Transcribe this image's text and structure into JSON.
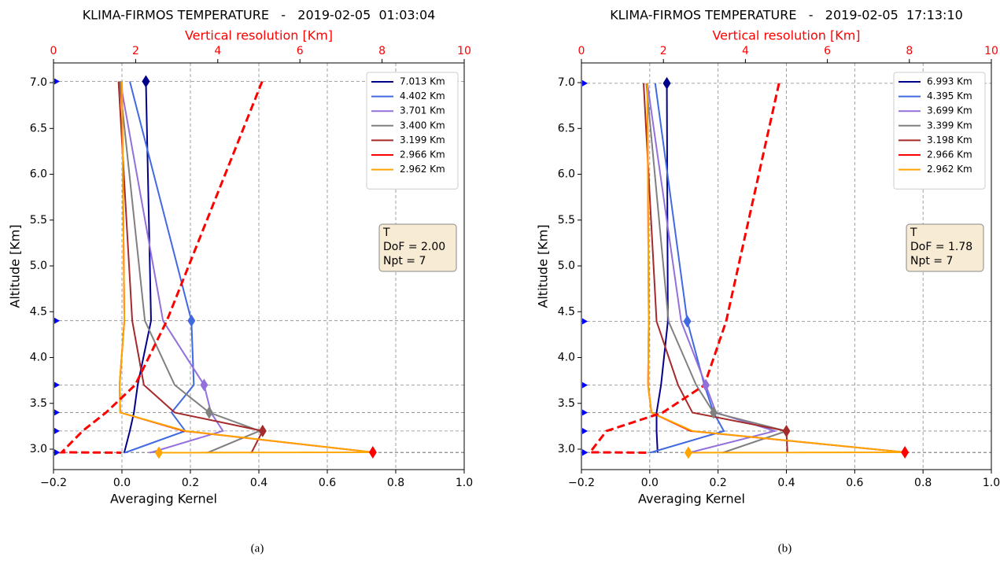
{
  "chart_data": [
    {
      "type": "line",
      "title": "KLIMA-FIRMOS TEMPERATURE   -   2019-02-05  01:03:04",
      "x_label": "Averaging Kernel",
      "y_label": "Altitude [Km]",
      "x2_label": "Vertical resolution [Km]",
      "caption": "(a)",
      "xlim": [
        -0.2,
        1.0
      ],
      "xticks": [
        {
          "value": -0.2,
          "label": "−0.2"
        },
        {
          "value": 0.0,
          "label": "0.0"
        },
        {
          "value": 0.2,
          "label": "0.2"
        },
        {
          "value": 0.4,
          "label": "0.4"
        },
        {
          "value": 0.6,
          "label": "0.6"
        },
        {
          "value": 0.8,
          "label": "0.8"
        },
        {
          "value": 1.0,
          "label": "1.0"
        }
      ],
      "x2lim": [
        0,
        10
      ],
      "x2ticks": [
        0,
        2,
        4,
        6,
        8,
        10
      ],
      "ylim": [
        2.777,
        7.215
      ],
      "yticks": [
        {
          "value": 3.0,
          "label": "3.0"
        },
        {
          "value": 3.5,
          "label": "3.5"
        },
        {
          "value": 4.0,
          "label": "4.0"
        },
        {
          "value": 4.5,
          "label": "4.5"
        },
        {
          "value": 5.0,
          "label": "5.0"
        },
        {
          "value": 5.5,
          "label": "5.5"
        },
        {
          "value": 6.0,
          "label": "6.0"
        },
        {
          "value": 6.5,
          "label": "6.5"
        },
        {
          "value": 7.0,
          "label": "7.0"
        }
      ],
      "y": [
        7.013,
        4.402,
        3.701,
        3.4,
        3.199,
        2.966,
        2.962
      ],
      "series": [
        {
          "name": "7.013 Km",
          "color": "#00008b",
          "values": [
            0.07,
            0.085,
            0.046,
            0.035,
            0.023,
            0.007,
            0.005
          ]
        },
        {
          "name": "4.402 Km",
          "color": "#4169e1",
          "values": [
            0.023,
            0.203,
            0.21,
            0.145,
            0.185,
            0.012,
            0.007
          ]
        },
        {
          "name": "3.701 Km",
          "color": "#9370db",
          "values": [
            -0.005,
            0.12,
            0.24,
            0.26,
            0.295,
            0.087,
            0.08
          ]
        },
        {
          "name": "3.400 Km",
          "color": "#808080",
          "values": [
            -0.007,
            0.067,
            0.154,
            0.255,
            0.402,
            0.253,
            0.246
          ]
        },
        {
          "name": "3.199 Km",
          "color": "#a52a2a",
          "values": [
            -0.01,
            0.03,
            0.064,
            0.154,
            0.411,
            0.379,
            0.375
          ]
        },
        {
          "name": "2.966 Km",
          "color": "#ff0000",
          "values": [
            0.0,
            0.007,
            -0.007,
            -0.005,
            0.18,
            0.733,
            0.73
          ]
        },
        {
          "name": "2.962 Km",
          "color": "#ffa500",
          "values": [
            0.0,
            0.007,
            -0.007,
            -0.005,
            0.185,
            0.733,
            0.108
          ]
        }
      ],
      "resolution": {
        "color": "#ff0000",
        "values": [
          5.08,
          2.76,
          1.99,
          1.28,
          0.71,
          0.2,
          1.65
        ]
      },
      "annotation": [
        "T",
        "DoF = 2.00",
        "Npt = 7"
      ]
    },
    {
      "type": "line",
      "title": "KLIMA-FIRMOS TEMPERATURE   -   2019-02-05  17:13:10",
      "x_label": "Averaging Kernel",
      "y_label": "Altitude [Km]",
      "x2_label": "Vertical resolution [Km]",
      "caption": "(b)",
      "xlim": [
        -0.2,
        1.0
      ],
      "xticks": [
        {
          "value": -0.2,
          "label": "−0.2"
        },
        {
          "value": 0.0,
          "label": "0.0"
        },
        {
          "value": 0.2,
          "label": "0.2"
        },
        {
          "value": 0.4,
          "label": "0.4"
        },
        {
          "value": 0.6,
          "label": "0.6"
        },
        {
          "value": 0.8,
          "label": "0.8"
        },
        {
          "value": 1.0,
          "label": "1.0"
        }
      ],
      "x2lim": [
        0,
        10
      ],
      "x2ticks": [
        0,
        2,
        4,
        6,
        8,
        10
      ],
      "ylim": [
        2.777,
        7.215
      ],
      "yticks": [
        {
          "value": 3.0,
          "label": "3.0"
        },
        {
          "value": 3.5,
          "label": "3.5"
        },
        {
          "value": 4.0,
          "label": "4.0"
        },
        {
          "value": 4.5,
          "label": "4.5"
        },
        {
          "value": 5.0,
          "label": "5.0"
        },
        {
          "value": 5.5,
          "label": "5.5"
        },
        {
          "value": 6.0,
          "label": "6.0"
        },
        {
          "value": 6.5,
          "label": "6.5"
        },
        {
          "value": 7.0,
          "label": "7.0"
        }
      ],
      "y": [
        6.993,
        4.395,
        3.699,
        3.399,
        3.198,
        2.966,
        2.962
      ],
      "series": [
        {
          "name": "6.993 Km",
          "color": "#00008b",
          "values": [
            0.05,
            0.053,
            0.033,
            0.02,
            0.02,
            0.023,
            0.023
          ]
        },
        {
          "name": "4.395 Km",
          "color": "#4169e1",
          "values": [
            0.016,
            0.11,
            0.16,
            0.187,
            0.217,
            0.005,
            0.0
          ]
        },
        {
          "name": "3.699 Km",
          "color": "#9370db",
          "values": [
            -0.007,
            0.092,
            0.164,
            0.194,
            0.366,
            0.12,
            0.113
          ]
        },
        {
          "name": "3.399 Km",
          "color": "#808080",
          "values": [
            -0.01,
            0.055,
            0.136,
            0.187,
            0.4,
            0.217,
            0.212
          ]
        },
        {
          "name": "3.198 Km",
          "color": "#a52a2a",
          "values": [
            -0.018,
            0.02,
            0.083,
            0.125,
            0.4,
            0.403,
            0.4
          ]
        },
        {
          "name": "2.966 Km",
          "color": "#ff0000",
          "values": [
            -0.007,
            -0.003,
            -0.005,
            0.005,
            0.12,
            0.747,
            0.74
          ]
        },
        {
          "name": "2.962 Km",
          "color": "#ffa500",
          "values": [
            -0.007,
            -0.003,
            -0.005,
            0.005,
            0.125,
            0.747,
            0.113
          ]
        }
      ],
      "resolution": {
        "color": "#ff0000",
        "values": [
          4.82,
          3.53,
          3.0,
          1.98,
          0.61,
          0.21,
          1.61
        ]
      },
      "annotation": [
        "T",
        "DoF = 1.78",
        "Npt = 7"
      ]
    }
  ]
}
